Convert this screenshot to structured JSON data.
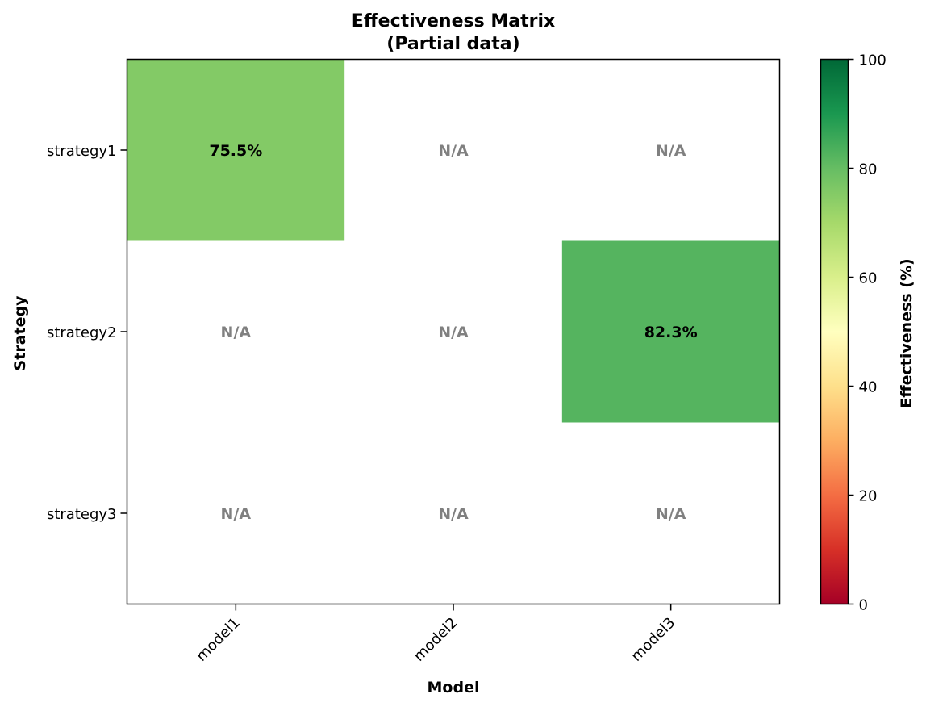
{
  "chart_data": {
    "type": "heatmap",
    "title_lines": [
      "Effectiveness Matrix",
      "(Partial data)"
    ],
    "xlabel": "Model",
    "ylabel": "Strategy",
    "x_categories": [
      "model1",
      "model2",
      "model3"
    ],
    "y_categories": [
      "strategy1",
      "strategy2",
      "strategy3"
    ],
    "values": [
      [
        75.5,
        null,
        null
      ],
      [
        null,
        null,
        82.3
      ],
      [
        null,
        null,
        null
      ]
    ],
    "cell_labels": [
      [
        "75.5%",
        "N/A",
        "N/A"
      ],
      [
        "N/A",
        "N/A",
        "82.3%"
      ],
      [
        "N/A",
        "N/A",
        "N/A"
      ]
    ],
    "missing_label": "N/A",
    "colorbar": {
      "label": "Effectiveness (%)",
      "range": [
        0,
        100
      ],
      "ticks": [
        "0",
        "20",
        "40",
        "60",
        "80",
        "100"
      ],
      "colormap": "RdYlGn"
    },
    "grid": false,
    "missing_label_color": "#808080",
    "value_label_color": "#000000"
  }
}
